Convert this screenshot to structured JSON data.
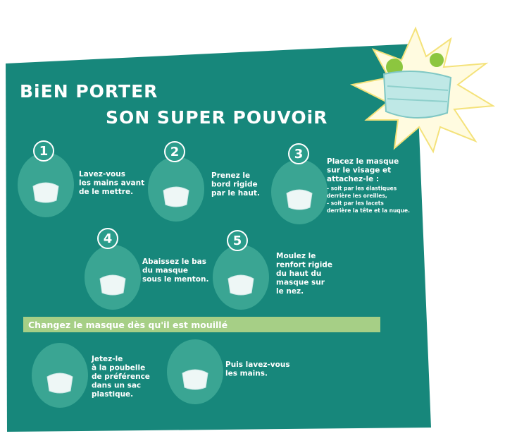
{
  "title": {
    "line1": "BiEN PORTER",
    "line2": "SON SUPER POUVOiR"
  },
  "steps": [
    {
      "number": "1",
      "lines": [
        "Lavez-vous",
        "les mains avant",
        "de le mettre."
      ]
    },
    {
      "number": "2",
      "lines": [
        "Prenez le",
        "bord rigide",
        "par le haut."
      ]
    },
    {
      "number": "3",
      "lines": [
        "Placez le masque",
        "sur le visage et",
        "attachez-le :"
      ],
      "details": [
        "- soit par les élastiques",
        "derrière les oreilles,",
        "- soit par les lacets",
        "derrière la tête et la nuque."
      ]
    },
    {
      "number": "4",
      "lines": [
        "Abaissez le bas",
        "du masque",
        "sous le menton."
      ]
    },
    {
      "number": "5",
      "lines": [
        "Moulez le",
        "renfort rigide",
        "du haut du",
        "masque sur",
        "le nez."
      ]
    }
  ],
  "change_banner": "Changez le masque dès qu'il est mouillé",
  "final_steps": [
    {
      "lines": [
        "Jetez-le",
        "à la poubelle",
        "de préférence",
        "dans un sac",
        "plastique."
      ]
    },
    {
      "lines": [
        "Puis lavez-vous",
        "les mains."
      ]
    }
  ]
}
